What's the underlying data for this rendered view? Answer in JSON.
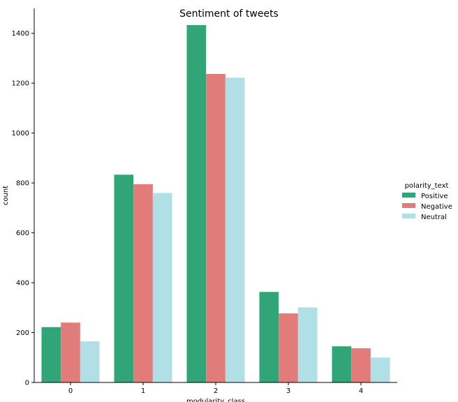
{
  "chart_data": {
    "type": "bar",
    "title": "Sentiment of tweets",
    "xlabel": "modularity_class",
    "ylabel": "count",
    "categories": [
      "0",
      "1",
      "2",
      "3",
      "4"
    ],
    "series": [
      {
        "name": "Positive",
        "color": "#31a478",
        "values": [
          222,
          833,
          1433,
          363,
          145
        ]
      },
      {
        "name": "Negative",
        "color": "#e27c7a",
        "values": [
          240,
          795,
          1237,
          277,
          137
        ]
      },
      {
        "name": "Neutral",
        "color": "#b0e0e5",
        "values": [
          165,
          760,
          1222,
          301,
          100
        ]
      }
    ],
    "ylim": [
      0,
      1500
    ],
    "yticks": [
      0,
      200,
      400,
      600,
      800,
      1000,
      1200,
      1400
    ],
    "legend": {
      "title": "polarity_text",
      "position": "right"
    },
    "grid": false
  }
}
